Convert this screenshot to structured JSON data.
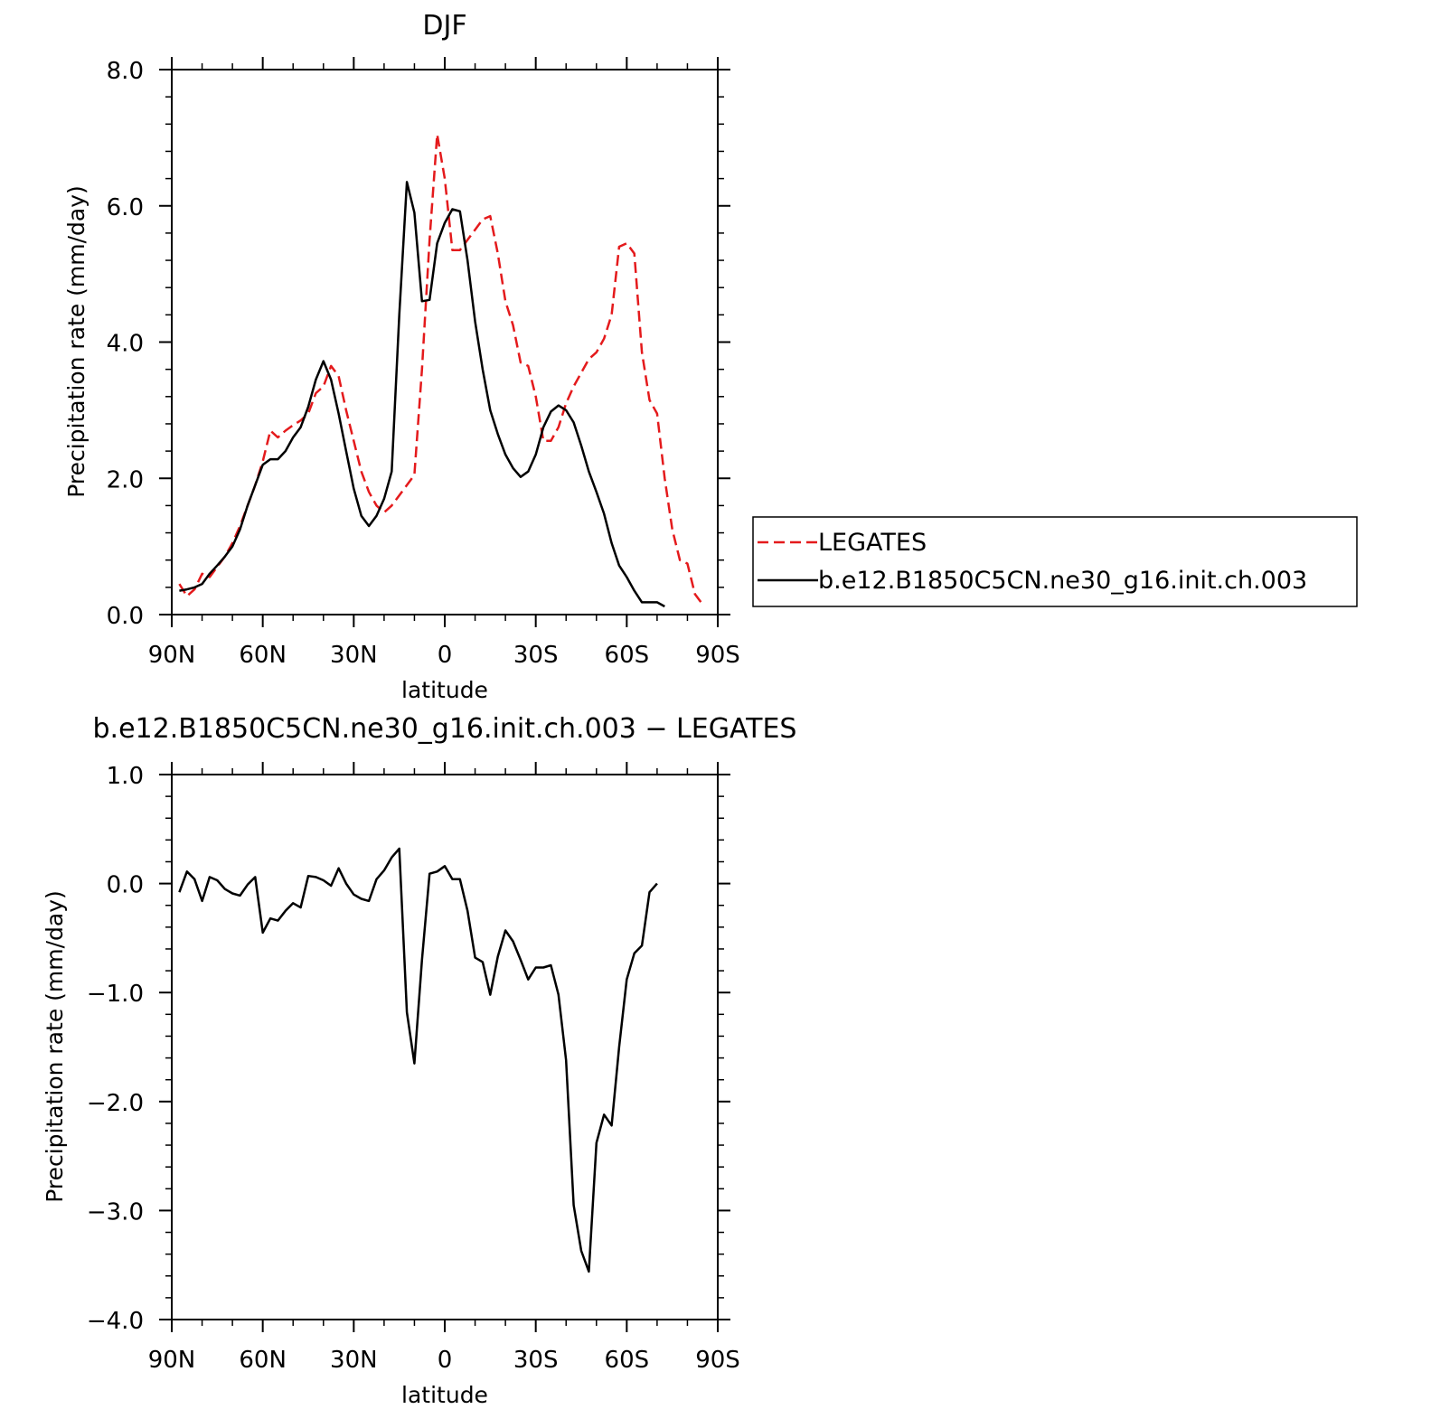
{
  "chart_data": [
    {
      "type": "line",
      "title": "DJF",
      "xlabel": "latitude",
      "ylabel": "Precipitation rate (mm/day)",
      "xlim": [
        90,
        -90
      ],
      "ylim": [
        0,
        8
      ],
      "x_ticks": [
        {
          "value": 90,
          "label": "90N"
        },
        {
          "value": 60,
          "label": "60N"
        },
        {
          "value": 30,
          "label": "30N"
        },
        {
          "value": 0,
          "label": "0"
        },
        {
          "value": -30,
          "label": "30S"
        },
        {
          "value": -60,
          "label": "60S"
        },
        {
          "value": -90,
          "label": "90S"
        }
      ],
      "y_ticks": [
        {
          "value": 0,
          "label": "0.0"
        },
        {
          "value": 2,
          "label": "2.0"
        },
        {
          "value": 4,
          "label": "4.0"
        },
        {
          "value": 6,
          "label": "6.0"
        },
        {
          "value": 8,
          "label": "8.0"
        }
      ],
      "legend_position": "right",
      "series": [
        {
          "name": "LEGATES",
          "color": "#e41a1c",
          "dash": "dashed",
          "points": [
            [
              87.5,
              0.45
            ],
            [
              85,
              0.27
            ],
            [
              82.5,
              0.37
            ],
            [
              80,
              0.6
            ],
            [
              77.5,
              0.55
            ],
            [
              75,
              0.7
            ],
            [
              72.5,
              0.85
            ],
            [
              70,
              1.05
            ],
            [
              67.5,
              1.3
            ],
            [
              65,
              1.6
            ],
            [
              62.5,
              1.9
            ],
            [
              60,
              2.25
            ],
            [
              57.5,
              2.7
            ],
            [
              55,
              2.6
            ],
            [
              52.5,
              2.7
            ],
            [
              50,
              2.78
            ],
            [
              47.5,
              2.85
            ],
            [
              45,
              2.95
            ],
            [
              42.5,
              3.25
            ],
            [
              40,
              3.35
            ],
            [
              37.5,
              3.65
            ],
            [
              35,
              3.5
            ],
            [
              32.5,
              3.0
            ],
            [
              30,
              2.55
            ],
            [
              27.5,
              2.1
            ],
            [
              25,
              1.8
            ],
            [
              22.5,
              1.6
            ],
            [
              20,
              1.5
            ],
            [
              17.5,
              1.6
            ],
            [
              15,
              1.75
            ],
            [
              12.5,
              1.9
            ],
            [
              10,
              2.05
            ],
            [
              7.5,
              3.6
            ],
            [
              5,
              5.5
            ],
            [
              2.5,
              7.05
            ],
            [
              0,
              6.4
            ],
            [
              -2.5,
              5.35
            ],
            [
              -5,
              5.35
            ],
            [
              -7.5,
              5.5
            ],
            [
              -10,
              5.65
            ],
            [
              -12.5,
              5.8
            ],
            [
              -15,
              5.85
            ],
            [
              -17.5,
              5.3
            ],
            [
              -20,
              4.6
            ],
            [
              -22.5,
              4.25
            ],
            [
              -25,
              3.7
            ],
            [
              -27.5,
              3.65
            ],
            [
              -30,
              3.2
            ],
            [
              -32.5,
              2.55
            ],
            [
              -35,
              2.55
            ],
            [
              -37.5,
              2.75
            ],
            [
              -40,
              3.1
            ],
            [
              -42.5,
              3.35
            ],
            [
              -45,
              3.55
            ],
            [
              -47.5,
              3.75
            ],
            [
              -50,
              3.85
            ],
            [
              -52.5,
              4.05
            ],
            [
              -55,
              4.4
            ],
            [
              -57.5,
              5.4
            ],
            [
              -60,
              5.45
            ],
            [
              -62.5,
              5.3
            ],
            [
              -65,
              3.85
            ],
            [
              -67.5,
              3.15
            ],
            [
              -70,
              2.95
            ],
            [
              -72.5,
              2.0
            ],
            [
              -75,
              1.25
            ],
            [
              -77.5,
              0.8
            ],
            [
              -80,
              0.75
            ],
            [
              -82.5,
              0.3
            ],
            [
              -85,
              0.15
            ]
          ]
        },
        {
          "name": "b.e12.B1850C5CN.ne30_g16.init.ch.003",
          "color": "#000000",
          "dash": "solid",
          "points": [
            [
              87.5,
              0.35
            ],
            [
              85,
              0.37
            ],
            [
              82.5,
              0.4
            ],
            [
              80,
              0.45
            ],
            [
              77.5,
              0.6
            ],
            [
              75,
              0.72
            ],
            [
              72.5,
              0.85
            ],
            [
              70,
              1.0
            ],
            [
              67.5,
              1.25
            ],
            [
              65,
              1.6
            ],
            [
              62.5,
              1.9
            ],
            [
              60,
              2.2
            ],
            [
              57.5,
              2.28
            ],
            [
              55,
              2.28
            ],
            [
              52.5,
              2.4
            ],
            [
              50,
              2.6
            ],
            [
              47.5,
              2.75
            ],
            [
              45,
              3.05
            ],
            [
              42.5,
              3.45
            ],
            [
              40,
              3.72
            ],
            [
              37.5,
              3.45
            ],
            [
              35,
              2.95
            ],
            [
              32.5,
              2.4
            ],
            [
              30,
              1.85
            ],
            [
              27.5,
              1.45
            ],
            [
              25,
              1.3
            ],
            [
              22.5,
              1.45
            ],
            [
              20,
              1.7
            ],
            [
              17.5,
              2.1
            ],
            [
              15,
              4.4
            ],
            [
              12.5,
              6.35
            ],
            [
              10,
              5.9
            ],
            [
              7.5,
              4.6
            ],
            [
              5,
              4.62
            ],
            [
              2.5,
              5.45
            ],
            [
              0,
              5.75
            ],
            [
              -2.5,
              5.95
            ],
            [
              -5,
              5.92
            ],
            [
              -7.5,
              5.2
            ],
            [
              -10,
              4.3
            ],
            [
              -12.5,
              3.6
            ],
            [
              -15,
              3.0
            ],
            [
              -17.5,
              2.65
            ],
            [
              -20,
              2.35
            ],
            [
              -22.5,
              2.15
            ],
            [
              -25,
              2.02
            ],
            [
              -27.5,
              2.1
            ],
            [
              -30,
              2.35
            ],
            [
              -32.5,
              2.75
            ],
            [
              -35,
              2.98
            ],
            [
              -37.5,
              3.07
            ],
            [
              -40,
              3.0
            ],
            [
              -42.5,
              2.82
            ],
            [
              -45,
              2.48
            ],
            [
              -47.5,
              2.1
            ],
            [
              -50,
              1.8
            ],
            [
              -52.5,
              1.48
            ],
            [
              -55,
              1.05
            ],
            [
              -57.5,
              0.72
            ],
            [
              -60,
              0.55
            ],
            [
              -62.5,
              0.35
            ],
            [
              -65,
              0.18
            ],
            [
              -67.5,
              0.18
            ],
            [
              -70,
              0.18
            ],
            [
              -72.5,
              0.12
            ]
          ]
        }
      ]
    },
    {
      "type": "line",
      "title": "b.e12.B1850C5CN.ne30_g16.init.ch.003 − LEGATES",
      "xlabel": "latitude",
      "ylabel": "Precipitation rate (mm/day)",
      "xlim": [
        90,
        -90
      ],
      "ylim": [
        -4,
        1
      ],
      "x_ticks": [
        {
          "value": 90,
          "label": "90N"
        },
        {
          "value": 60,
          "label": "60N"
        },
        {
          "value": 30,
          "label": "30N"
        },
        {
          "value": 0,
          "label": "0"
        },
        {
          "value": -30,
          "label": "30S"
        },
        {
          "value": -60,
          "label": "60S"
        },
        {
          "value": -90,
          "label": "90S"
        }
      ],
      "y_ticks": [
        {
          "value": -4,
          "label": "−4.0"
        },
        {
          "value": -3,
          "label": "−3.0"
        },
        {
          "value": -2,
          "label": "−2.0"
        },
        {
          "value": -1,
          "label": "−1.0"
        },
        {
          "value": 0,
          "label": "0.0"
        },
        {
          "value": 1,
          "label": "1.0"
        }
      ],
      "series": [
        {
          "color": "#000000",
          "dash": "solid",
          "points": [
            [
              87.5,
              -0.08
            ],
            [
              85,
              0.11
            ],
            [
              82.5,
              0.04
            ],
            [
              80,
              -0.16
            ],
            [
              77.5,
              0.06
            ],
            [
              75,
              0.03
            ],
            [
              72.5,
              -0.05
            ],
            [
              70,
              -0.09
            ],
            [
              67.5,
              -0.11
            ],
            [
              65,
              -0.01
            ],
            [
              62.5,
              0.06
            ],
            [
              60,
              -0.45
            ],
            [
              57.5,
              -0.32
            ],
            [
              55,
              -0.34
            ],
            [
              52.5,
              -0.25
            ],
            [
              50,
              -0.18
            ],
            [
              47.5,
              -0.22
            ],
            [
              45,
              0.07
            ],
            [
              42.5,
              0.06
            ],
            [
              40,
              0.03
            ],
            [
              37.5,
              -0.02
            ],
            [
              35,
              0.14
            ],
            [
              32.5,
              0.0
            ],
            [
              30,
              -0.1
            ],
            [
              27.5,
              -0.14
            ],
            [
              25,
              -0.16
            ],
            [
              22.5,
              0.04
            ],
            [
              20,
              0.12
            ],
            [
              17.5,
              0.24
            ],
            [
              15,
              0.32
            ],
            [
              12.5,
              -1.18
            ],
            [
              10,
              -1.65
            ],
            [
              7.5,
              -0.7
            ],
            [
              5,
              0.09
            ],
            [
              2.5,
              0.11
            ],
            [
              0,
              0.16
            ],
            [
              -2.5,
              0.04
            ],
            [
              -5,
              0.04
            ],
            [
              -7.5,
              -0.25
            ],
            [
              -10,
              -0.68
            ],
            [
              -12.5,
              -0.72
            ],
            [
              -15,
              -1.02
            ],
            [
              -17.5,
              -0.67
            ],
            [
              -20,
              -0.43
            ],
            [
              -22.5,
              -0.53
            ],
            [
              -25,
              -0.7
            ],
            [
              -27.5,
              -0.88
            ],
            [
              -30,
              -0.77
            ],
            [
              -32.5,
              -0.77
            ],
            [
              -35,
              -0.75
            ],
            [
              -37.5,
              -1.02
            ],
            [
              -40,
              -1.62
            ],
            [
              -42.5,
              -2.95
            ],
            [
              -45,
              -3.37
            ],
            [
              -47.5,
              -3.56
            ],
            [
              -50,
              -2.38
            ],
            [
              -52.5,
              -2.12
            ],
            [
              -55,
              -2.22
            ],
            [
              -57.5,
              -1.5
            ],
            [
              -60,
              -0.88
            ],
            [
              -62.5,
              -0.64
            ],
            [
              -65,
              -0.57
            ],
            [
              -67.5,
              -0.08
            ],
            [
              -70,
              0.0
            ]
          ]
        }
      ]
    }
  ]
}
